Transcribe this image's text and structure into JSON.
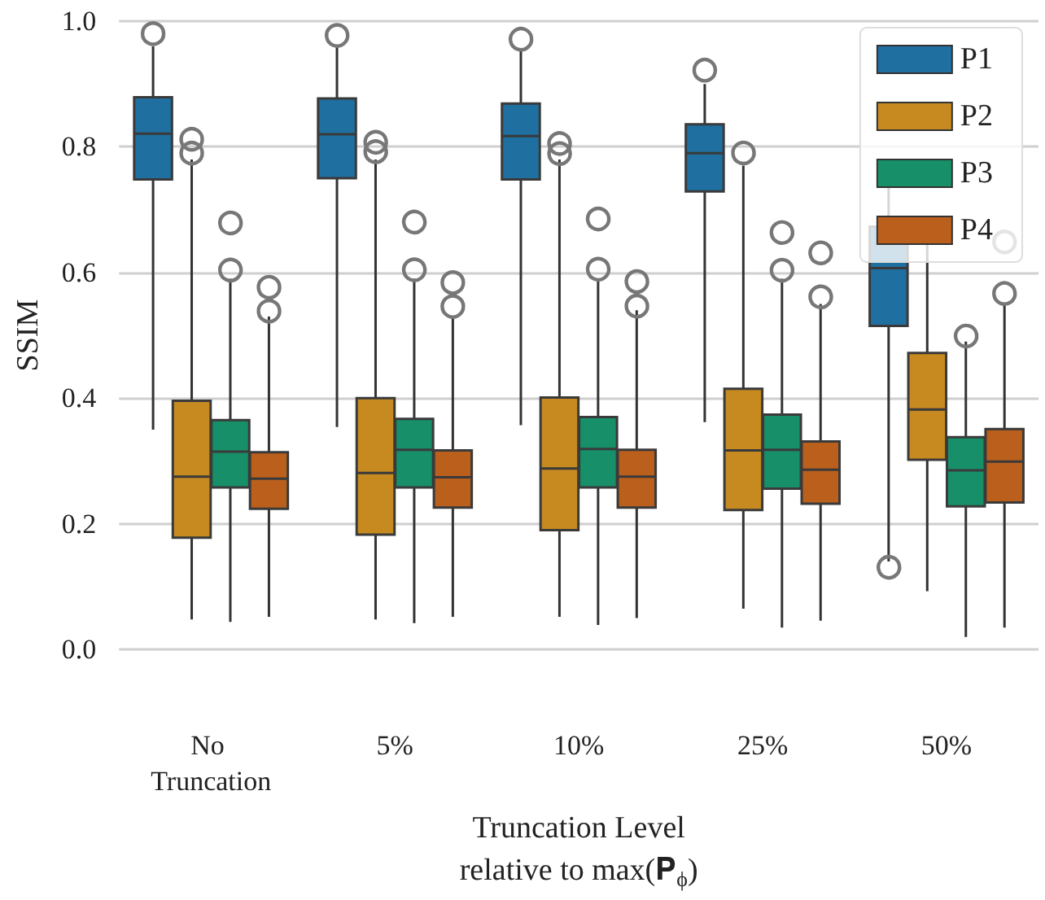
{
  "chart_data": {
    "type": "box",
    "ylabel": "SSIM",
    "xlabel": "Truncation Level\nrelative to max(𝐏$_{ϕ}$)",
    "categories": [
      "No Truncation",
      "5%",
      "10%",
      "25%",
      "50%"
    ],
    "ylim": [
      0,
      1.0
    ],
    "yticks": [
      {
        "value": 0,
        "label": "0.0"
      },
      {
        "value": 0.2,
        "label": "0.2"
      },
      {
        "value": 0.4,
        "label": "0.4"
      },
      {
        "value": 0.6,
        "label": "0.6"
      },
      {
        "value": 0.8,
        "label": "0.8"
      },
      {
        "value": 1,
        "label": "1.0"
      }
    ],
    "grid": "y",
    "legend": "top right",
    "series": [
      {
        "name": "P1",
        "color": "#1f6fa0",
        "boxes": [
          {
            "low": 0.35,
            "q1": 0.748,
            "median": 0.821,
            "q3": 0.879,
            "high": 0.96,
            "outliers": [
              0.98
            ]
          },
          {
            "low": 0.354,
            "q1": 0.75,
            "median": 0.82,
            "q3": 0.877,
            "high": 0.96,
            "outliers": [
              0.98
            ]
          },
          {
            "low": 0.357,
            "q1": 0.748,
            "median": 0.817,
            "q3": 0.869,
            "high": 0.955,
            "outliers": [
              0.974
            ]
          },
          {
            "low": 0.362,
            "q1": 0.729,
            "median": 0.79,
            "q3": 0.836,
            "high": 0.9,
            "outliers": [
              0.922
            ]
          },
          {
            "low": 0.14,
            "q1": 0.515,
            "median": 0.607,
            "q3": 0.673,
            "high": 0.78,
            "outliers": [
              0.135
            ]
          }
        ]
      },
      {
        "name": "P2",
        "color": "#c68a20",
        "boxes": [
          {
            "low": 0.048,
            "q1": 0.178,
            "median": 0.275,
            "q3": 0.396,
            "high": 0.78,
            "outliers": [
              0.812,
              0.79
            ]
          },
          {
            "low": 0.048,
            "q1": 0.183,
            "median": 0.281,
            "q3": 0.4,
            "high": 0.78,
            "outliers": [
              0.81,
              0.795
            ]
          },
          {
            "low": 0.052,
            "q1": 0.19,
            "median": 0.288,
            "q3": 0.401,
            "high": 0.78,
            "outliers": [
              0.808,
              0.792
            ]
          },
          {
            "low": 0.065,
            "q1": 0.222,
            "median": 0.317,
            "q3": 0.415,
            "high": 0.77,
            "outliers": [
              0.793
            ]
          },
          {
            "low": 0.093,
            "q1": 0.302,
            "median": 0.382,
            "q3": 0.472,
            "high": 0.66
          }
        ]
      },
      {
        "name": "P3",
        "color": "#178f68",
        "boxes": [
          {
            "low": 0.044,
            "q1": 0.258,
            "median": 0.315,
            "q3": 0.365,
            "high": 0.59,
            "outliers": [
              0.682,
              0.607
            ]
          },
          {
            "low": 0.042,
            "q1": 0.258,
            "median": 0.318,
            "q3": 0.367,
            "high": 0.59,
            "outliers": [
              0.683,
              0.607
            ]
          },
          {
            "low": 0.039,
            "q1": 0.258,
            "median": 0.319,
            "q3": 0.37,
            "high": 0.59,
            "outliers": [
              0.688,
              0.608
            ]
          },
          {
            "low": 0.035,
            "q1": 0.256,
            "median": 0.318,
            "q3": 0.374,
            "high": 0.59,
            "outliers": [
              0.665,
              0.605
            ]
          },
          {
            "low": 0.02,
            "q1": 0.228,
            "median": 0.285,
            "q3": 0.338,
            "high": 0.49,
            "outliers": [
              0.503
            ]
          }
        ]
      },
      {
        "name": "P4",
        "color": "#bb5f1c",
        "boxes": [
          {
            "low": 0.052,
            "q1": 0.224,
            "median": 0.272,
            "q3": 0.314,
            "high": 0.53,
            "outliers": [
              0.579,
              0.541
            ]
          },
          {
            "low": 0.052,
            "q1": 0.226,
            "median": 0.274,
            "q3": 0.317,
            "high": 0.53,
            "outliers": [
              0.584,
              0.546
            ]
          },
          {
            "low": 0.05,
            "q1": 0.226,
            "median": 0.275,
            "q3": 0.318,
            "high": 0.54,
            "outliers": [
              0.589,
              0.55
            ]
          },
          {
            "low": 0.046,
            "q1": 0.232,
            "median": 0.286,
            "q3": 0.331,
            "high": 0.55,
            "outliers": [
              0.634,
              0.564
            ]
          },
          {
            "low": 0.035,
            "q1": 0.234,
            "median": 0.299,
            "q3": 0.351,
            "high": 0.55,
            "outliers": [
              0.65,
              0.568
            ]
          }
        ]
      }
    ]
  }
}
